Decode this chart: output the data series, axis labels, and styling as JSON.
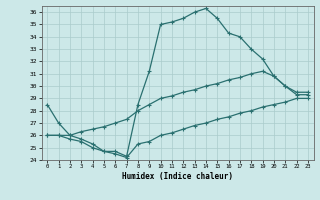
{
  "xlabel": "Humidex (Indice chaleur)",
  "bg_color": "#cce8e8",
  "line_color": "#2a7070",
  "grid_color": "#aacccc",
  "xlim": [
    -0.5,
    23.5
  ],
  "ylim": [
    24,
    36.5
  ],
  "xticks": [
    0,
    1,
    2,
    3,
    4,
    5,
    6,
    7,
    8,
    9,
    10,
    11,
    12,
    13,
    14,
    15,
    16,
    17,
    18,
    19,
    20,
    21,
    22,
    23
  ],
  "yticks": [
    24,
    25,
    26,
    27,
    28,
    29,
    30,
    31,
    32,
    33,
    34,
    35,
    36
  ],
  "line1_x": [
    0,
    1,
    2,
    3,
    4,
    5,
    6,
    7,
    8,
    9,
    10,
    11,
    12,
    13,
    14,
    15,
    16,
    17,
    18,
    19,
    20,
    21,
    22,
    23
  ],
  "line1_y": [
    28.5,
    27.0,
    26.0,
    25.7,
    25.3,
    24.7,
    24.7,
    24.3,
    28.5,
    31.2,
    35.0,
    35.2,
    35.5,
    36.0,
    36.3,
    35.5,
    34.3,
    34.0,
    33.0,
    32.2,
    30.8,
    30.0,
    29.3,
    29.3
  ],
  "line2_x": [
    0,
    1,
    2,
    3,
    4,
    5,
    6,
    7,
    8,
    9,
    10,
    11,
    12,
    13,
    14,
    15,
    16,
    17,
    18,
    19,
    20,
    21,
    22,
    23
  ],
  "line2_y": [
    26.0,
    26.0,
    26.0,
    26.3,
    26.5,
    26.7,
    27.0,
    27.3,
    28.0,
    28.5,
    29.0,
    29.2,
    29.5,
    29.7,
    30.0,
    30.2,
    30.5,
    30.7,
    31.0,
    31.2,
    30.8,
    30.0,
    29.5,
    29.5
  ],
  "line3_x": [
    0,
    1,
    2,
    3,
    4,
    5,
    6,
    7,
    8,
    9,
    10,
    11,
    12,
    13,
    14,
    15,
    16,
    17,
    18,
    19,
    20,
    21,
    22,
    23
  ],
  "line3_y": [
    26.0,
    26.0,
    25.7,
    25.5,
    25.0,
    24.7,
    24.5,
    24.2,
    25.3,
    25.5,
    26.0,
    26.2,
    26.5,
    26.8,
    27.0,
    27.3,
    27.5,
    27.8,
    28.0,
    28.3,
    28.5,
    28.7,
    29.0,
    29.0
  ]
}
